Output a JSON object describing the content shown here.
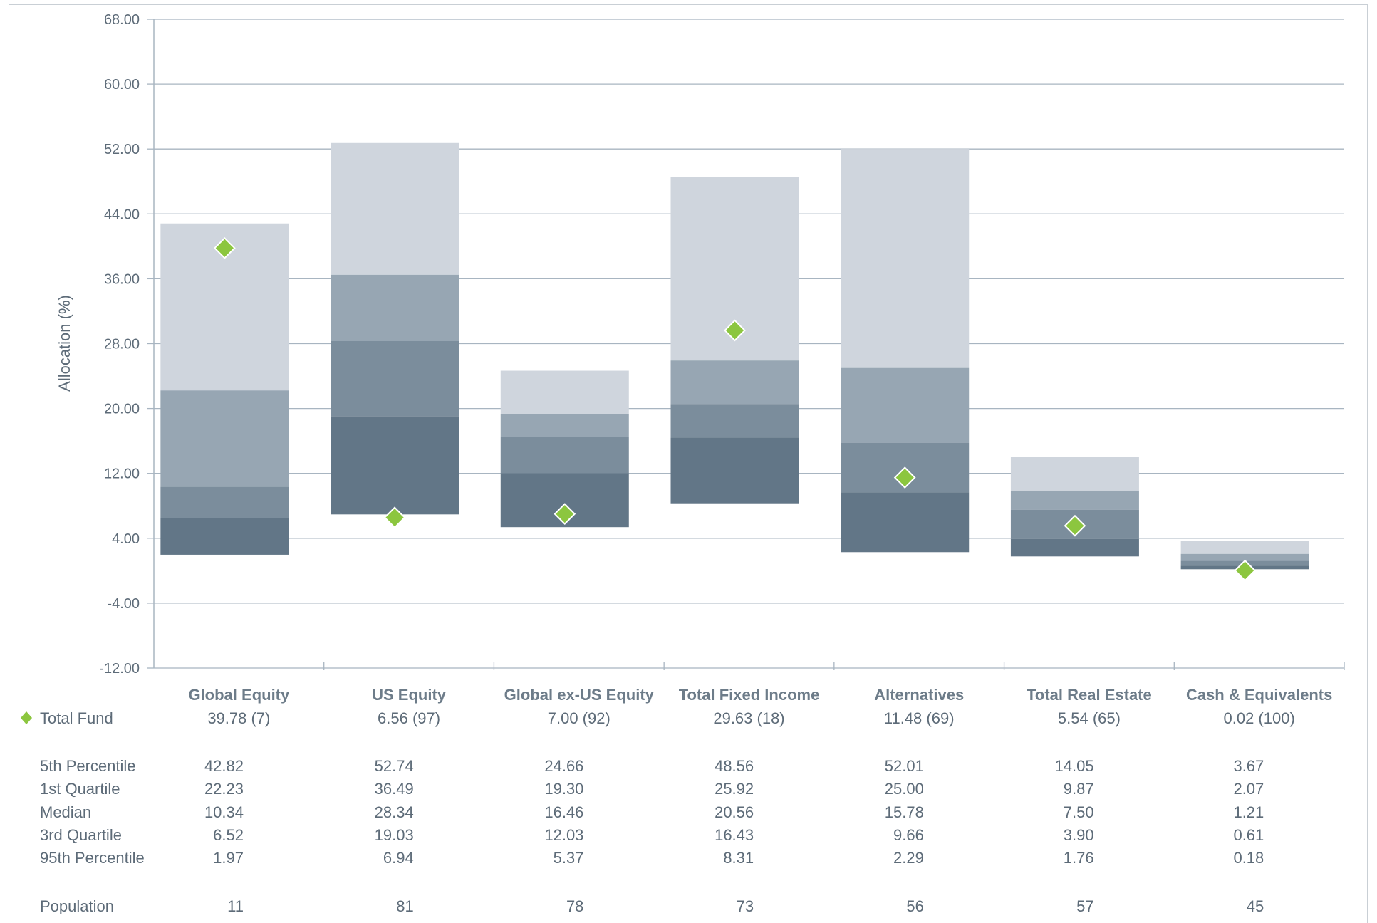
{
  "chart_data": {
    "type": "bar",
    "subtype": "floating-percentile-range",
    "ylabel": "Allocation (%)",
    "ylim": [
      -12,
      68
    ],
    "yticks": [
      "68.00",
      "60.00",
      "52.00",
      "44.00",
      "36.00",
      "28.00",
      "20.00",
      "12.00",
      "4.00",
      "-4.00",
      "-12.00"
    ],
    "grid": true,
    "categories": [
      "Global Equity",
      "US Equity",
      "Global ex-US Equity",
      "Total Fixed Income",
      "Alternatives",
      "Total Real Estate",
      "Cash & Equivalents"
    ],
    "total_fund": {
      "label": "Total Fund",
      "values": [
        39.78,
        6.56,
        7.0,
        29.63,
        11.48,
        5.54,
        0.02
      ],
      "ranks": [
        7,
        97,
        92,
        18,
        69,
        65,
        100
      ],
      "display": [
        "39.78  (7)",
        "6.56  (97)",
        "7.00  (92)",
        "29.63  (18)",
        "11.48  (69)",
        "5.54  (65)",
        "0.02  (100)"
      ]
    },
    "series": [
      {
        "name": "5th Percentile",
        "values": [
          42.82,
          52.74,
          24.66,
          48.56,
          52.01,
          14.05,
          3.67
        ],
        "display": [
          "42.82",
          "52.74",
          "24.66",
          "48.56",
          "52.01",
          "14.05",
          "3.67"
        ]
      },
      {
        "name": "1st Quartile",
        "values": [
          22.23,
          36.49,
          19.3,
          25.92,
          25.0,
          9.87,
          2.07
        ],
        "display": [
          "22.23",
          "36.49",
          "19.30",
          "25.92",
          "25.00",
          "9.87",
          "2.07"
        ]
      },
      {
        "name": "Median",
        "values": [
          10.34,
          28.34,
          16.46,
          20.56,
          15.78,
          7.5,
          1.21
        ],
        "display": [
          "10.34",
          "28.34",
          "16.46",
          "20.56",
          "15.78",
          "7.50",
          "1.21"
        ]
      },
      {
        "name": "3rd Quartile",
        "values": [
          6.52,
          19.03,
          12.03,
          16.43,
          9.66,
          3.9,
          0.61
        ],
        "display": [
          "6.52",
          "19.03",
          "12.03",
          "16.43",
          "9.66",
          "3.90",
          "0.61"
        ]
      },
      {
        "name": "95th Percentile",
        "values": [
          1.97,
          6.94,
          5.37,
          8.31,
          2.29,
          1.76,
          0.18
        ],
        "display": [
          "1.97",
          "6.94",
          "5.37",
          "8.31",
          "2.29",
          "1.76",
          "0.18"
        ]
      }
    ],
    "population": {
      "label": "Population",
      "values": [
        11,
        81,
        78,
        73,
        56,
        57,
        45
      ]
    },
    "colors": {
      "band_top": "#cfd5dd",
      "band_upper_mid": "#97a6b3",
      "band_lower_mid": "#7b8d9c",
      "band_bottom": "#627687",
      "marker": "#8cc63f",
      "grid": "#a8b5c1",
      "axis": "#a8b5c1",
      "text": "#5d6b78",
      "category_text": "#6d7c89"
    }
  }
}
